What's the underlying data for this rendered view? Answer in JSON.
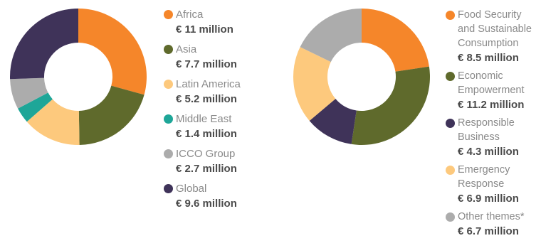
{
  "chart_data": [
    {
      "type": "pie",
      "categories": [
        "Africa",
        "Asia",
        "Latin America",
        "Middle East",
        "ICCO Group",
        "Global"
      ],
      "values": [
        11,
        7.7,
        5.2,
        1.4,
        2.7,
        9.6
      ],
      "amounts": [
        "€ 11 million",
        "€ 7.7 million",
        "€ 5.2 million",
        "€ 1.4 million",
        "€ 2.7 million",
        "€ 9.6 million"
      ],
      "colors": [
        "#f5862a",
        "#5f6a2c",
        "#fdc97d",
        "#1ea698",
        "#acacac",
        "#3f3359"
      ],
      "donut": true,
      "legend": "right"
    },
    {
      "type": "pie",
      "categories": [
        "Food Security and Sustainable Consumption",
        "Economic Empowerment",
        "Responsible Business",
        "Emergency Response",
        "Other themes*"
      ],
      "values": [
        8.5,
        11.2,
        4.3,
        6.9,
        6.7
      ],
      "amounts": [
        "€ 8.5 million",
        "€ 11.2 million",
        "€ 4.3 million",
        "€ 6.9 million",
        "€ 6.7 million"
      ],
      "colors": [
        "#f5862a",
        "#5f6a2c",
        "#3f3359",
        "#fdc97d",
        "#acacac"
      ],
      "donut": true,
      "legend": "right"
    }
  ]
}
